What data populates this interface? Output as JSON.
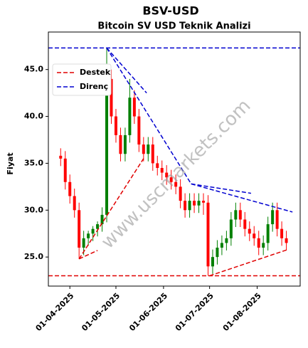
{
  "chart_data": {
    "type": "candlestick",
    "title": "BSV-USD",
    "subtitle": "Bitcoin SV USD Teknik Analizi",
    "ylabel": "Fiyat",
    "watermark": "www.uscmarkets.com",
    "x": [
      "2025-03-26",
      "2025-03-29",
      "2025-04-01",
      "2025-04-04",
      "2025-04-07",
      "2025-04-10",
      "2025-04-13",
      "2025-04-16",
      "2025-04-19",
      "2025-04-22",
      "2025-04-25",
      "2025-04-28",
      "2025-05-01",
      "2025-05-04",
      "2025-05-07",
      "2025-05-10",
      "2025-05-13",
      "2025-05-16",
      "2025-05-19",
      "2025-05-22",
      "2025-05-25",
      "2025-05-28",
      "2025-05-31",
      "2025-06-03",
      "2025-06-06",
      "2025-06-09",
      "2025-06-12",
      "2025-06-15",
      "2025-06-18",
      "2025-06-21",
      "2025-06-24",
      "2025-06-27",
      "2025-06-30",
      "2025-07-03",
      "2025-07-06",
      "2025-07-09",
      "2025-07-12",
      "2025-07-15",
      "2025-07-18",
      "2025-07-21",
      "2025-07-24",
      "2025-07-27",
      "2025-07-30",
      "2025-08-02",
      "2025-08-05",
      "2025-08-08",
      "2025-08-11",
      "2025-08-14",
      "2025-08-17",
      "2025-08-20"
    ],
    "open": [
      35.8,
      35.5,
      33,
      31.5,
      30,
      26,
      27,
      27.5,
      28,
      28.5,
      29.5,
      44,
      40,
      38,
      36,
      38,
      42,
      40,
      37,
      36,
      37,
      35,
      34.5,
      34,
      33.5,
      33,
      32.5,
      31,
      30,
      31,
      30.5,
      31,
      30.8,
      24,
      25,
      26,
      26.5,
      27,
      29,
      30,
      29,
      28,
      27.5,
      27,
      26,
      26.5,
      28.5,
      30,
      28,
      27
    ],
    "high": [
      36.6,
      36.3,
      33.8,
      32.3,
      30.8,
      27.8,
      27.8,
      28.3,
      28.8,
      30.3,
      47.3,
      45,
      40.8,
      38.8,
      38.8,
      44,
      42.8,
      40.8,
      37.8,
      37.8,
      37.8,
      35.8,
      35.3,
      34.8,
      34.3,
      33.8,
      33.3,
      31.8,
      31.8,
      31.8,
      31.8,
      31.8,
      31.6,
      25.8,
      26.8,
      27.3,
      27.8,
      29.8,
      30.8,
      30.8,
      29.8,
      28.8,
      28.3,
      27.8,
      27.3,
      29.3,
      30.8,
      30.8,
      28.8,
      27.8
    ],
    "low": [
      34.7,
      32.2,
      30.7,
      29.2,
      24.8,
      25.2,
      26.2,
      26.7,
      27.2,
      27.7,
      28.7,
      39.2,
      37.2,
      35.2,
      35.2,
      37.2,
      39.2,
      36.2,
      35.2,
      35.2,
      34.2,
      33.7,
      33.2,
      32.7,
      32.2,
      31.7,
      30.2,
      29.2,
      29.2,
      29.7,
      29.7,
      29.5,
      23.0,
      23.2,
      24.2,
      25.2,
      25.7,
      26.2,
      28.2,
      28.2,
      27.2,
      26.7,
      26.2,
      25.2,
      25.2,
      25.7,
      27.7,
      27.2,
      26.2,
      25.7
    ],
    "close": [
      35.5,
      33,
      31.5,
      30,
      26,
      27,
      27.5,
      28,
      28.5,
      29.5,
      44,
      40,
      38,
      36,
      38,
      42,
      40,
      37,
      36,
      37,
      35,
      34.5,
      34,
      33.5,
      33,
      32.5,
      31,
      30,
      31,
      30.5,
      31,
      30.8,
      24,
      25,
      26,
      26.5,
      27,
      29,
      30,
      29,
      28,
      27.5,
      27,
      26,
      26.5,
      28.5,
      30,
      28,
      27,
      26.5
    ],
    "up_color": "#008000",
    "down_color": "#ff0000",
    "xlim": [
      "2025-03-18",
      "2025-08-29"
    ],
    "xticks": [
      {
        "value": "2025-04-01",
        "label": "01-04-2025"
      },
      {
        "value": "2025-05-01",
        "label": "01-05-2025"
      },
      {
        "value": "2025-06-01",
        "label": "01-06-2025"
      },
      {
        "value": "2025-07-01",
        "label": "01-07-2025"
      },
      {
        "value": "2025-08-01",
        "label": "01-08-2025"
      }
    ],
    "ylim": [
      21.9,
      49.0
    ],
    "yticks": [
      {
        "value": 25,
        "label": "25.0"
      },
      {
        "value": 30,
        "label": "30.0"
      },
      {
        "value": 35,
        "label": "35.0"
      },
      {
        "value": 40,
        "label": "40.0"
      },
      {
        "value": 45,
        "label": "45.0"
      }
    ],
    "legend_position": "upper left",
    "lines": [
      {
        "name": "Destek",
        "color": "#e00000",
        "segments": [
          [
            [
              "2025-03-18",
              23.0
            ],
            [
              "2025-08-29",
              23.0
            ]
          ],
          [
            [
              "2025-04-07",
              24.8
            ],
            [
              "2025-05-19",
              35.5
            ]
          ],
          [
            [
              "2025-04-07",
              24.8
            ],
            [
              "2025-04-19",
              25.7
            ]
          ],
          [
            [
              "2025-07-01",
              23.0
            ],
            [
              "2025-08-21",
              25.8
            ]
          ]
        ]
      },
      {
        "name": "Direnç",
        "color": "#0000d0",
        "segments": [
          [
            [
              "2025-03-18",
              47.3
            ],
            [
              "2025-08-29",
              47.3
            ]
          ],
          [
            [
              "2025-04-25",
              47.3
            ],
            [
              "2025-05-21",
              42.5
            ]
          ],
          [
            [
              "2025-04-25",
              47.3
            ],
            [
              "2025-06-19",
              32.8
            ]
          ],
          [
            [
              "2025-06-19",
              32.8
            ],
            [
              "2025-07-28",
              31.8
            ]
          ],
          [
            [
              "2025-06-19",
              32.8
            ],
            [
              "2025-08-24",
              29.8
            ]
          ]
        ]
      }
    ]
  }
}
